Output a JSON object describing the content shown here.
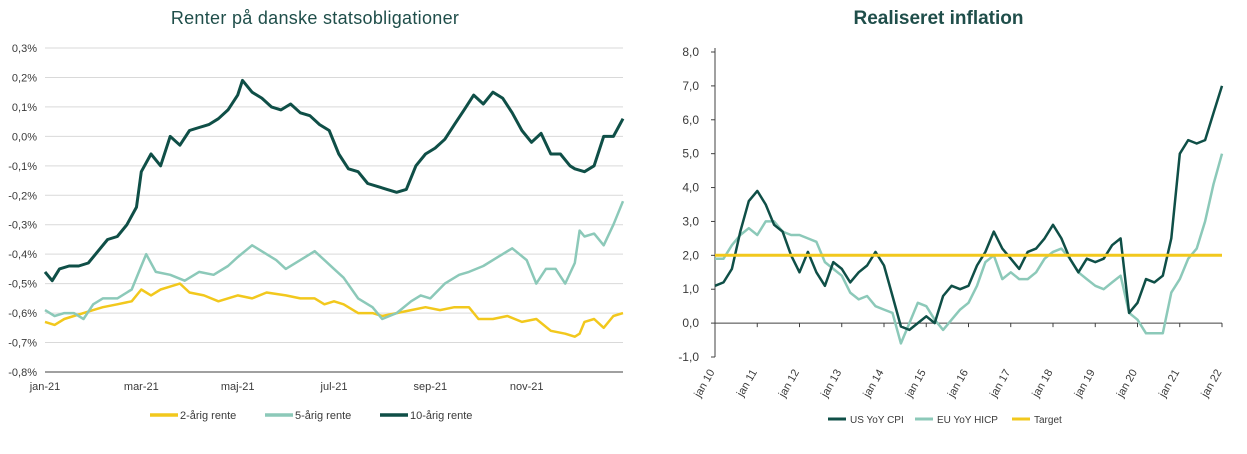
{
  "colors": {
    "yellow": "#F2C81D",
    "mint": "#8CC9B9",
    "dark": "#0F4F47",
    "grid": "#D9D9D9",
    "axis": "#404040",
    "text": "#3a3a3a",
    "title": "#1f4e4a"
  },
  "chart_data": [
    {
      "type": "line",
      "title": "Renter på danske statsobligationer",
      "ylim": [
        -0.8,
        0.3
      ],
      "yticks": [
        "0,3%",
        "0,2%",
        "0,1%",
        "0,0%",
        "-0,1%",
        "-0,2%",
        "-0,3%",
        "-0,4%",
        "-0,5%",
        "-0,6%",
        "-0,7%",
        "-0,8%"
      ],
      "ytick_values": [
        0.3,
        0.2,
        0.1,
        0.0,
        -0.1,
        -0.2,
        -0.3,
        -0.4,
        -0.5,
        -0.6,
        -0.7,
        -0.8
      ],
      "xlim": [
        0,
        12
      ],
      "xticks": [
        "jan-21",
        "mar-21",
        "maj-21",
        "jul-21",
        "sep-21",
        "nov-21"
      ],
      "xtick_values": [
        0,
        2,
        4,
        6,
        8,
        10
      ],
      "grid": true,
      "legend_position": "bottom",
      "series": [
        {
          "name": "2-årig rente",
          "color": "#F2C81D",
          "x": [
            0,
            0.2,
            0.4,
            0.6,
            0.8,
            1.0,
            1.2,
            1.5,
            1.8,
            2.0,
            2.2,
            2.4,
            2.6,
            2.8,
            3.0,
            3.3,
            3.6,
            4.0,
            4.3,
            4.6,
            5.0,
            5.3,
            5.6,
            5.8,
            6.0,
            6.2,
            6.5,
            6.8,
            7.0,
            7.3,
            7.6,
            7.9,
            8.2,
            8.5,
            8.8,
            9.0,
            9.3,
            9.6,
            9.9,
            10.2,
            10.5,
            10.8,
            11.0,
            11.1,
            11.2,
            11.4,
            11.6,
            11.8,
            12.0
          ],
          "y": [
            -0.63,
            -0.64,
            -0.62,
            -0.61,
            -0.6,
            -0.59,
            -0.58,
            -0.57,
            -0.56,
            -0.52,
            -0.54,
            -0.52,
            -0.51,
            -0.5,
            -0.53,
            -0.54,
            -0.56,
            -0.54,
            -0.55,
            -0.53,
            -0.54,
            -0.55,
            -0.55,
            -0.57,
            -0.56,
            -0.57,
            -0.6,
            -0.6,
            -0.61,
            -0.6,
            -0.59,
            -0.58,
            -0.59,
            -0.58,
            -0.58,
            -0.62,
            -0.62,
            -0.61,
            -0.63,
            -0.62,
            -0.66,
            -0.67,
            -0.68,
            -0.67,
            -0.63,
            -0.62,
            -0.65,
            -0.61,
            -0.6
          ]
        },
        {
          "name": "5-årig rente",
          "color": "#8CC9B9",
          "x": [
            0,
            0.2,
            0.4,
            0.6,
            0.8,
            1.0,
            1.2,
            1.5,
            1.8,
            2.0,
            2.1,
            2.3,
            2.6,
            2.9,
            3.2,
            3.5,
            3.8,
            4.0,
            4.3,
            4.6,
            4.8,
            5.0,
            5.3,
            5.6,
            5.8,
            6.0,
            6.2,
            6.5,
            6.8,
            7.0,
            7.3,
            7.6,
            7.8,
            8.0,
            8.3,
            8.6,
            8.8,
            9.1,
            9.4,
            9.7,
            10.0,
            10.2,
            10.4,
            10.6,
            10.8,
            11.0,
            11.1,
            11.2,
            11.4,
            11.6,
            11.8,
            12.0
          ],
          "y": [
            -0.59,
            -0.61,
            -0.6,
            -0.6,
            -0.62,
            -0.57,
            -0.55,
            -0.55,
            -0.52,
            -0.44,
            -0.4,
            -0.46,
            -0.47,
            -0.49,
            -0.46,
            -0.47,
            -0.44,
            -0.41,
            -0.37,
            -0.4,
            -0.42,
            -0.45,
            -0.42,
            -0.39,
            -0.42,
            -0.45,
            -0.48,
            -0.55,
            -0.58,
            -0.62,
            -0.6,
            -0.56,
            -0.54,
            -0.55,
            -0.5,
            -0.47,
            -0.46,
            -0.44,
            -0.41,
            -0.38,
            -0.42,
            -0.5,
            -0.45,
            -0.45,
            -0.5,
            -0.43,
            -0.32,
            -0.34,
            -0.33,
            -0.37,
            -0.3,
            -0.22
          ]
        },
        {
          "name": "10-årig rente",
          "color": "#0F4F47",
          "x": [
            0,
            0.15,
            0.3,
            0.5,
            0.7,
            0.9,
            1.1,
            1.3,
            1.5,
            1.7,
            1.9,
            2.0,
            2.2,
            2.4,
            2.6,
            2.8,
            3.0,
            3.2,
            3.4,
            3.6,
            3.8,
            4.0,
            4.1,
            4.3,
            4.5,
            4.7,
            4.9,
            5.1,
            5.3,
            5.5,
            5.7,
            5.9,
            6.1,
            6.3,
            6.5,
            6.7,
            6.9,
            7.1,
            7.3,
            7.5,
            7.7,
            7.9,
            8.1,
            8.3,
            8.5,
            8.7,
            8.9,
            9.1,
            9.3,
            9.5,
            9.7,
            9.9,
            10.1,
            10.3,
            10.5,
            10.7,
            10.9,
            11.0,
            11.2,
            11.4,
            11.6,
            11.8,
            12.0
          ],
          "y": [
            -0.46,
            -0.49,
            -0.45,
            -0.44,
            -0.44,
            -0.43,
            -0.39,
            -0.35,
            -0.34,
            -0.3,
            -0.24,
            -0.12,
            -0.06,
            -0.1,
            0.0,
            -0.03,
            0.02,
            0.03,
            0.04,
            0.06,
            0.09,
            0.14,
            0.19,
            0.15,
            0.13,
            0.1,
            0.09,
            0.11,
            0.08,
            0.07,
            0.04,
            0.02,
            -0.06,
            -0.11,
            -0.12,
            -0.16,
            -0.17,
            -0.18,
            -0.19,
            -0.18,
            -0.1,
            -0.06,
            -0.04,
            -0.01,
            0.04,
            0.09,
            0.14,
            0.11,
            0.15,
            0.13,
            0.08,
            0.02,
            -0.02,
            0.01,
            -0.06,
            -0.06,
            -0.1,
            -0.11,
            -0.12,
            -0.1,
            0.0,
            0.0,
            0.06
          ]
        }
      ]
    },
    {
      "type": "line",
      "title": "Realiseret inflation",
      "ylim": [
        -1.0,
        8.0
      ],
      "yticks": [
        "8,0",
        "7,0",
        "6,0",
        "5,0",
        "4,0",
        "3,0",
        "2,0",
        "1,0",
        "0,0",
        "-1,0"
      ],
      "ytick_values": [
        8,
        7,
        6,
        5,
        4,
        3,
        2,
        1,
        0,
        -1
      ],
      "xlim": [
        0,
        12
      ],
      "xticks": [
        "jan 10",
        "jan 11",
        "jan 12",
        "jan 13",
        "jan 14",
        "jan 15",
        "jan 16",
        "jan 17",
        "jan 18",
        "jan 19",
        "jan 20",
        "jan 21",
        "jan 22"
      ],
      "xtick_values": [
        0,
        1,
        2,
        3,
        4,
        5,
        6,
        7,
        8,
        9,
        10,
        11,
        12
      ],
      "grid": false,
      "legend_position": "bottom",
      "series": [
        {
          "name": "US YoY CPI",
          "color": "#0F4F47",
          "x": [
            0,
            0.2,
            0.4,
            0.6,
            0.8,
            1.0,
            1.2,
            1.4,
            1.6,
            1.8,
            2.0,
            2.2,
            2.4,
            2.6,
            2.8,
            3.0,
            3.2,
            3.4,
            3.6,
            3.8,
            4.0,
            4.2,
            4.4,
            4.6,
            4.8,
            5.0,
            5.2,
            5.4,
            5.6,
            5.8,
            6.0,
            6.2,
            6.4,
            6.6,
            6.8,
            7.0,
            7.2,
            7.4,
            7.6,
            7.8,
            8.0,
            8.2,
            8.4,
            8.6,
            8.8,
            9.0,
            9.2,
            9.4,
            9.6,
            9.8,
            10.0,
            10.2,
            10.4,
            10.6,
            10.8,
            11.0,
            11.2,
            11.4,
            11.6,
            11.8,
            12.0
          ],
          "y": [
            1.1,
            1.2,
            1.6,
            2.7,
            3.6,
            3.9,
            3.5,
            2.9,
            2.7,
            2.0,
            1.5,
            2.1,
            1.5,
            1.1,
            1.8,
            1.6,
            1.2,
            1.5,
            1.7,
            2.1,
            1.7,
            0.8,
            -0.1,
            -0.2,
            0.0,
            0.2,
            0.0,
            0.8,
            1.1,
            1.0,
            1.1,
            1.7,
            2.1,
            2.7,
            2.2,
            1.9,
            1.6,
            2.1,
            2.2,
            2.5,
            2.9,
            2.5,
            1.9,
            1.5,
            1.9,
            1.8,
            1.9,
            2.3,
            2.5,
            0.3,
            0.6,
            1.3,
            1.2,
            1.4,
            2.5,
            5.0,
            5.4,
            5.3,
            5.4,
            6.2,
            7.0
          ]
        },
        {
          "name": "EU YoY HICP",
          "color": "#8CC9B9",
          "x": [
            0,
            0.2,
            0.4,
            0.6,
            0.8,
            1.0,
            1.2,
            1.4,
            1.6,
            1.8,
            2.0,
            2.2,
            2.4,
            2.6,
            2.8,
            3.0,
            3.2,
            3.4,
            3.6,
            3.8,
            4.0,
            4.2,
            4.4,
            4.6,
            4.8,
            5.0,
            5.2,
            5.4,
            5.6,
            5.8,
            6.0,
            6.2,
            6.4,
            6.6,
            6.8,
            7.0,
            7.2,
            7.4,
            7.6,
            7.8,
            8.0,
            8.2,
            8.4,
            8.6,
            8.8,
            9.0,
            9.2,
            9.4,
            9.6,
            9.8,
            10.0,
            10.2,
            10.4,
            10.6,
            10.8,
            11.0,
            11.2,
            11.4,
            11.6,
            11.8,
            12.0
          ],
          "y": [
            1.9,
            1.9,
            2.3,
            2.6,
            2.8,
            2.6,
            3.0,
            3.0,
            2.7,
            2.6,
            2.6,
            2.5,
            2.4,
            1.8,
            1.6,
            1.4,
            0.9,
            0.7,
            0.8,
            0.5,
            0.4,
            0.3,
            -0.6,
            0.0,
            0.6,
            0.5,
            0.1,
            -0.2,
            0.1,
            0.4,
            0.6,
            1.1,
            1.8,
            2.0,
            1.3,
            1.5,
            1.3,
            1.3,
            1.5,
            1.9,
            2.1,
            2.2,
            1.9,
            1.5,
            1.3,
            1.1,
            1.0,
            1.2,
            1.4,
            0.3,
            0.1,
            -0.3,
            -0.3,
            -0.3,
            0.9,
            1.3,
            1.9,
            2.2,
            3.0,
            4.1,
            5.0
          ]
        },
        {
          "name": "Target",
          "color": "#F2C81D",
          "x": [
            0,
            12
          ],
          "y": [
            2.0,
            2.0
          ]
        }
      ]
    }
  ]
}
